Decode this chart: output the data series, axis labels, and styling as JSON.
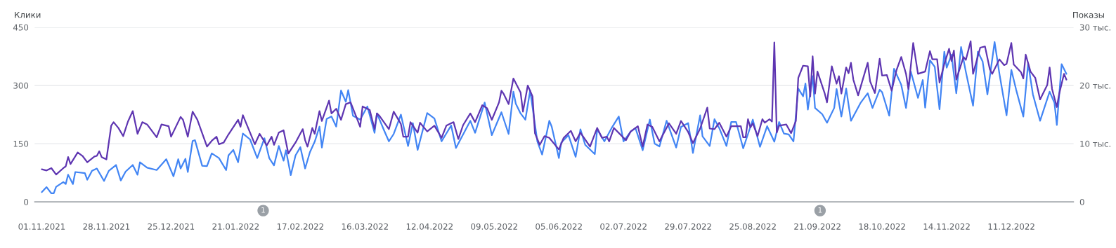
{
  "chart_data": {
    "type": "line",
    "ylabel": "Клики",
    "y2label": "Показы",
    "xlim": [
      "2021-10-29",
      "2023-01-06"
    ],
    "xticks": [
      {
        "value": "2021-11-01",
        "label": "01.11.2021"
      },
      {
        "value": "2021-11-28",
        "label": "28.11.2021"
      },
      {
        "value": "2021-12-25",
        "label": "25.12.2021"
      },
      {
        "value": "2022-01-21",
        "label": "21.01.2022"
      },
      {
        "value": "2022-02-17",
        "label": "17.02.2022"
      },
      {
        "value": "2022-03-16",
        "label": "16.03.2022"
      },
      {
        "value": "2022-04-12",
        "label": "12.04.2022"
      },
      {
        "value": "2022-05-09",
        "label": "09.05.2022"
      },
      {
        "value": "2022-06-05",
        "label": "05.06.2022"
      },
      {
        "value": "2022-07-02",
        "label": "02.07.2022"
      },
      {
        "value": "2022-07-29",
        "label": "29.07.2022"
      },
      {
        "value": "2022-08-25",
        "label": "25.08.2022"
      },
      {
        "value": "2022-09-21",
        "label": "21.09.2022"
      },
      {
        "value": "2022-10-18",
        "label": "18.10.2022"
      },
      {
        "value": "2022-11-14",
        "label": "14.11.2022"
      },
      {
        "value": "2022-12-11",
        "label": "11.12.2022"
      }
    ],
    "ylim": [
      0,
      450
    ],
    "yticks": [
      0,
      150,
      300,
      450
    ],
    "y2lim": [
      0,
      30
    ],
    "y2ticks": [
      0,
      {
        "value": 10,
        "label": "10 тыс."
      },
      {
        "value": 20,
        "label": "20 тыс."
      },
      {
        "value": 30,
        "label": "30 тыс."
      }
    ],
    "grid": "y",
    "annotations": [
      "1",
      "1"
    ],
    "series": [
      {
        "color": "#4285f4",
        "axis": "y",
        "x": [
          "2021-11-01",
          "2021-11-03",
          "2021-11-05",
          "2021-11-06",
          "2021-11-07",
          "2021-11-10",
          "2021-11-11",
          "2021-11-12",
          "2021-11-14",
          "2021-11-15",
          "2021-11-19",
          "2021-11-20",
          "2021-11-22",
          "2021-11-24",
          "2021-11-27",
          "2021-11-29",
          "2021-12-02",
          "2021-12-04",
          "2021-12-06",
          "2021-12-09",
          "2021-12-11",
          "2021-12-12",
          "2021-12-15",
          "2021-12-19",
          "2021-12-23",
          "2021-12-26",
          "2021-12-28",
          "2021-12-29",
          "2021-12-31",
          "2022-01-01",
          "2022-01-03",
          "2022-01-04",
          "2022-01-07",
          "2022-01-09",
          "2022-01-11",
          "2022-01-14",
          "2022-01-17",
          "2022-01-18",
          "2022-01-20",
          "2022-01-22",
          "2022-01-24",
          "2022-01-27",
          "2022-01-30",
          "2022-02-02",
          "2022-02-04",
          "2022-02-06",
          "2022-02-08",
          "2022-02-10",
          "2022-02-11",
          "2022-02-13",
          "2022-02-15",
          "2022-02-17",
          "2022-02-19",
          "2022-02-21",
          "2022-02-23",
          "2022-02-25",
          "2022-02-26",
          "2022-02-28",
          "2022-03-02",
          "2022-03-04",
          "2022-03-06",
          "2022-03-08",
          "2022-03-09",
          "2022-03-11",
          "2022-03-14",
          "2022-03-17",
          "2022-03-20",
          "2022-03-21",
          "2022-03-24",
          "2022-03-26",
          "2022-03-28",
          "2022-03-31",
          "2022-04-03",
          "2022-04-05",
          "2022-04-07",
          "2022-04-11",
          "2022-04-14",
          "2022-04-17",
          "2022-04-21",
          "2022-04-23",
          "2022-04-29",
          "2022-05-01",
          "2022-05-05",
          "2022-05-08",
          "2022-05-12",
          "2022-05-15",
          "2022-05-17",
          "2022-05-18",
          "2022-05-20",
          "2022-05-22",
          "2022-05-24",
          "2022-05-27",
          "2022-05-29",
          "2022-06-01",
          "2022-06-02",
          "2022-06-05",
          "2022-06-06",
          "2022-06-09",
          "2022-06-12",
          "2022-06-14",
          "2022-06-16",
          "2022-06-20",
          "2022-06-21",
          "2022-06-24",
          "2022-06-27",
          "2022-06-30",
          "2022-07-02",
          "2022-07-05",
          "2022-07-07",
          "2022-07-10",
          "2022-07-13",
          "2022-07-15",
          "2022-07-17",
          "2022-07-20",
          "2022-07-24",
          "2022-07-26",
          "2022-07-29",
          "2022-07-31",
          "2022-08-03",
          "2022-08-04",
          "2022-08-07",
          "2022-08-09",
          "2022-08-11",
          "2022-08-14",
          "2022-08-16",
          "2022-08-18",
          "2022-08-21",
          "2022-08-25",
          "2022-08-28",
          "2022-08-31",
          "2022-09-03",
          "2022-09-05",
          "2022-09-07",
          "2022-09-09",
          "2022-09-11",
          "2022-09-13",
          "2022-09-15",
          "2022-09-16",
          "2022-09-17",
          "2022-09-19",
          "2022-09-20",
          "2022-09-23",
          "2022-09-25",
          "2022-09-28",
          "2022-09-29",
          "2022-10-01",
          "2022-10-03",
          "2022-10-05",
          "2022-10-09",
          "2022-10-12",
          "2022-10-14",
          "2022-10-17",
          "2022-10-18",
          "2022-10-21",
          "2022-10-23",
          "2022-10-26",
          "2022-10-28",
          "2022-10-30",
          "2022-11-02",
          "2022-11-04",
          "2022-11-05",
          "2022-11-07",
          "2022-11-09",
          "2022-11-11",
          "2022-11-13",
          "2022-11-14",
          "2022-11-16",
          "2022-11-18",
          "2022-11-20",
          "2022-11-22",
          "2022-11-25",
          "2022-11-27",
          "2022-11-29",
          "2022-12-01",
          "2022-12-04",
          "2022-12-06",
          "2022-12-09",
          "2022-12-11",
          "2022-12-13",
          "2022-12-16",
          "2022-12-18",
          "2022-12-20",
          "2022-12-23",
          "2022-12-27",
          "2022-12-29",
          "2022-12-30",
          "2023-01-01",
          "2023-01-03"
        ],
        "values": [
          25,
          38,
          22,
          22,
          39,
          51,
          46,
          70,
          46,
          77,
          74,
          57,
          80,
          86,
          54,
          80,
          95,
          55,
          78,
          95,
          70,
          102,
          88,
          82,
          110,
          66,
          110,
          86,
          111,
          77,
          157,
          159,
          93,
          92,
          125,
          113,
          82,
          120,
          134,
          102,
          176,
          161,
          113,
          164,
          113,
          94,
          144,
          106,
          133,
          69,
          120,
          141,
          86,
          128,
          155,
          194,
          140,
          214,
          220,
          194,
          287,
          258,
          288,
          222,
          212,
          246,
          178,
          228,
          184,
          156,
          175,
          225,
          144,
          203,
          134,
          229,
          215,
          156,
          197,
          139,
          209,
          178,
          256,
          172,
          231,
          175,
          284,
          253,
          228,
          212,
          287,
          156,
          122,
          209,
          194,
          113,
          153,
          172,
          116,
          187,
          147,
          123,
          187,
          156,
          190,
          220,
          156,
          181,
          190,
          133,
          212,
          150,
          143,
          209,
          140,
          193,
          203,
          126,
          223,
          169,
          144,
          213,
          190,
          144,
          206,
          206,
          138,
          212,
          142,
          195,
          155,
          206,
          176,
          174,
          156,
          292,
          272,
          305,
          238,
          324,
          242,
          226,
          204,
          242,
          291,
          220,
          292,
          209,
          255,
          280,
          242,
          289,
          283,
          222,
          343,
          302,
          242,
          336,
          268,
          314,
          243,
          365,
          348,
          239,
          387,
          346,
          379,
          280,
          399,
          335,
          248,
          387,
          362,
          277,
          412,
          331,
          223,
          340,
          289,
          220,
          357,
          277,
          209,
          284,
          255,
          198,
          355,
          330
        ]
      },
      {
        "color": "#5e35b1",
        "axis": "y2",
        "x": [
          "2021-11-01",
          "2021-11-03",
          "2021-11-05",
          "2021-11-07",
          "2021-11-10",
          "2021-11-11",
          "2021-11-12",
          "2021-11-13",
          "2021-11-16",
          "2021-11-18",
          "2021-11-20",
          "2021-11-23",
          "2021-11-24",
          "2021-11-25",
          "2021-11-26",
          "2021-11-28",
          "2021-11-30",
          "2021-12-01",
          "2021-12-03",
          "2021-12-05",
          "2021-12-07",
          "2021-12-09",
          "2021-12-11",
          "2021-12-13",
          "2021-12-15",
          "2021-12-19",
          "2021-12-21",
          "2021-12-24",
          "2021-12-25",
          "2021-12-29",
          "2021-12-30",
          "2022-01-01",
          "2022-01-03",
          "2022-01-05",
          "2022-01-09",
          "2022-01-11",
          "2022-01-13",
          "2022-01-14",
          "2022-01-16",
          "2022-01-18",
          "2022-01-22",
          "2022-01-23",
          "2022-01-24",
          "2022-01-29",
          "2022-01-31",
          "2022-02-03",
          "2022-02-05",
          "2022-02-06",
          "2022-02-08",
          "2022-02-10",
          "2022-02-12",
          "2022-02-15",
          "2022-02-18",
          "2022-02-19",
          "2022-02-20",
          "2022-02-22",
          "2022-02-23",
          "2022-02-25",
          "2022-02-26",
          "2022-03-01",
          "2022-03-02",
          "2022-03-04",
          "2022-03-06",
          "2022-03-08",
          "2022-03-10",
          "2022-03-14",
          "2022-03-15",
          "2022-03-18",
          "2022-03-20",
          "2022-03-21",
          "2022-03-22",
          "2022-03-26",
          "2022-03-28",
          "2022-03-31",
          "2022-04-01",
          "2022-04-03",
          "2022-04-04",
          "2022-04-07",
          "2022-04-08",
          "2022-04-11",
          "2022-04-14",
          "2022-04-17",
          "2022-04-19",
          "2022-04-22",
          "2022-04-24",
          "2022-04-26",
          "2022-04-29",
          "2022-05-01",
          "2022-05-04",
          "2022-05-06",
          "2022-05-08",
          "2022-05-11",
          "2022-05-12",
          "2022-05-13",
          "2022-05-15",
          "2022-05-17",
          "2022-05-20",
          "2022-05-21",
          "2022-05-23",
          "2022-05-25",
          "2022-05-26",
          "2022-05-28",
          "2022-05-30",
          "2022-06-01",
          "2022-06-05",
          "2022-06-07",
          "2022-06-10",
          "2022-06-12",
          "2022-06-14",
          "2022-06-18",
          "2022-06-21",
          "2022-06-23",
          "2022-06-25",
          "2022-06-26",
          "2022-06-28",
          "2022-07-03",
          "2022-07-05",
          "2022-07-08",
          "2022-07-10",
          "2022-07-12",
          "2022-07-14",
          "2022-07-17",
          "2022-07-21",
          "2022-07-24",
          "2022-07-26",
          "2022-07-29",
          "2022-07-31",
          "2022-08-03",
          "2022-08-06",
          "2022-08-07",
          "2022-08-09",
          "2022-08-11",
          "2022-08-14",
          "2022-08-16",
          "2022-08-20",
          "2022-08-21",
          "2022-08-22",
          "2022-08-23",
          "2022-08-24",
          "2022-08-25",
          "2022-08-27",
          "2022-08-29",
          "2022-08-30",
          "2022-09-01",
          "2022-09-02",
          "2022-09-03",
          "2022-09-04",
          "2022-09-05",
          "2022-09-08",
          "2022-09-10",
          "2022-09-12",
          "2022-09-13",
          "2022-09-15",
          "2022-09-17",
          "2022-09-18",
          "2022-09-19",
          "2022-09-20",
          "2022-09-21",
          "2022-09-24",
          "2022-09-25",
          "2022-09-27",
          "2022-09-29",
          "2022-09-30",
          "2022-10-01",
          "2022-10-03",
          "2022-10-04",
          "2022-10-05",
          "2022-10-06",
          "2022-10-08",
          "2022-10-12",
          "2022-10-13",
          "2022-10-15",
          "2022-10-17",
          "2022-10-18",
          "2022-10-20",
          "2022-10-22",
          "2022-10-24",
          "2022-10-26",
          "2022-10-28",
          "2022-10-29",
          "2022-10-31",
          "2022-11-02",
          "2022-11-05",
          "2022-11-07",
          "2022-11-08",
          "2022-11-10",
          "2022-11-11",
          "2022-11-13",
          "2022-11-15",
          "2022-11-16",
          "2022-11-17",
          "2022-11-18",
          "2022-11-21",
          "2022-11-22",
          "2022-11-24",
          "2022-11-25",
          "2022-11-28",
          "2022-11-30",
          "2022-12-02",
          "2022-12-03",
          "2022-12-06",
          "2022-12-08",
          "2022-12-09",
          "2022-12-11",
          "2022-12-12",
          "2022-12-15",
          "2022-12-16",
          "2022-12-17",
          "2022-12-19",
          "2022-12-21",
          "2022-12-23",
          "2022-12-26",
          "2022-12-27",
          "2022-12-28",
          "2022-12-30",
          "2022-12-31",
          "2023-01-02",
          "2023-01-03"
        ],
        "values": [
          5.6,
          5.4,
          5.8,
          4.7,
          5.8,
          6.1,
          7.7,
          6.5,
          8.5,
          7.9,
          6.8,
          7.8,
          7.9,
          8.7,
          7.7,
          7.3,
          13.1,
          13.7,
          12.7,
          11.3,
          13.8,
          15.6,
          11.7,
          13.7,
          13.3,
          11.1,
          13.3,
          13.0,
          11.2,
          14.6,
          14.1,
          11.2,
          15.5,
          14.1,
          9.5,
          10.5,
          11.2,
          9.9,
          10.2,
          11.6,
          14.1,
          12.9,
          14.9,
          9.9,
          11.7,
          9.7,
          11.2,
          9.8,
          11.9,
          12.3,
          8.3,
          10.2,
          12.5,
          10.6,
          9.5,
          12.7,
          11.7,
          15.6,
          13.9,
          17.4,
          15.2,
          16.0,
          14.1,
          16.8,
          17.1,
          12.9,
          16.4,
          15.8,
          12.5,
          15.2,
          14.8,
          12.5,
          15.5,
          13.4,
          11.2,
          11.2,
          13.7,
          11.9,
          13.6,
          12.1,
          13.1,
          11.0,
          13.1,
          13.7,
          10.8,
          13.2,
          15.2,
          13.7,
          16.6,
          16.1,
          14.1,
          17.1,
          19.1,
          18.5,
          16.8,
          21.2,
          18.8,
          15.5,
          20.0,
          18.1,
          11.8,
          9.8,
          11.3,
          11.0,
          9.0,
          11.0,
          12.2,
          10.4,
          11.9,
          9.5,
          12.7,
          11.0,
          11.2,
          10.4,
          12.7,
          10.6,
          12.1,
          13.0,
          9.5,
          13.3,
          12.9,
          10.4,
          13.5,
          11.7,
          13.9,
          12.0,
          10.1,
          12.6,
          16.2,
          12.6,
          12.5,
          13.6,
          11.2,
          13.0,
          13.0,
          11.1,
          11.1,
          14.2,
          12.8,
          13.5,
          11.3,
          14.2,
          13.6,
          14.2,
          13.8,
          27.4,
          11.9,
          13.1,
          13.3,
          11.8,
          13.9,
          21.3,
          23.4,
          23.3,
          18.1,
          25.0,
          18.6,
          22.4,
          18.7,
          17.1,
          23.3,
          20.3,
          21.6,
          18.6,
          23.1,
          22.1,
          23.9,
          21.0,
          18.3,
          23.9,
          20.7,
          18.7,
          24.6,
          21.7,
          21.8,
          19.1,
          22.6,
          24.9,
          22.0,
          19.4,
          27.3,
          22.0,
          22.4,
          25.9,
          24.5,
          24.5,
          20.5,
          23.7,
          26.3,
          24.2,
          26.0,
          21.0,
          24.9,
          24.4,
          27.6,
          22.0,
          26.5,
          26.7,
          22.8,
          22.0,
          24.5,
          23.5,
          23.7,
          27.3,
          23.6,
          22.3,
          21.2,
          25.3,
          22.4,
          21.3,
          17.6,
          20.1,
          23.1,
          19.4,
          16.3,
          18.6,
          22.0,
          21.0
        ]
      }
    ]
  }
}
